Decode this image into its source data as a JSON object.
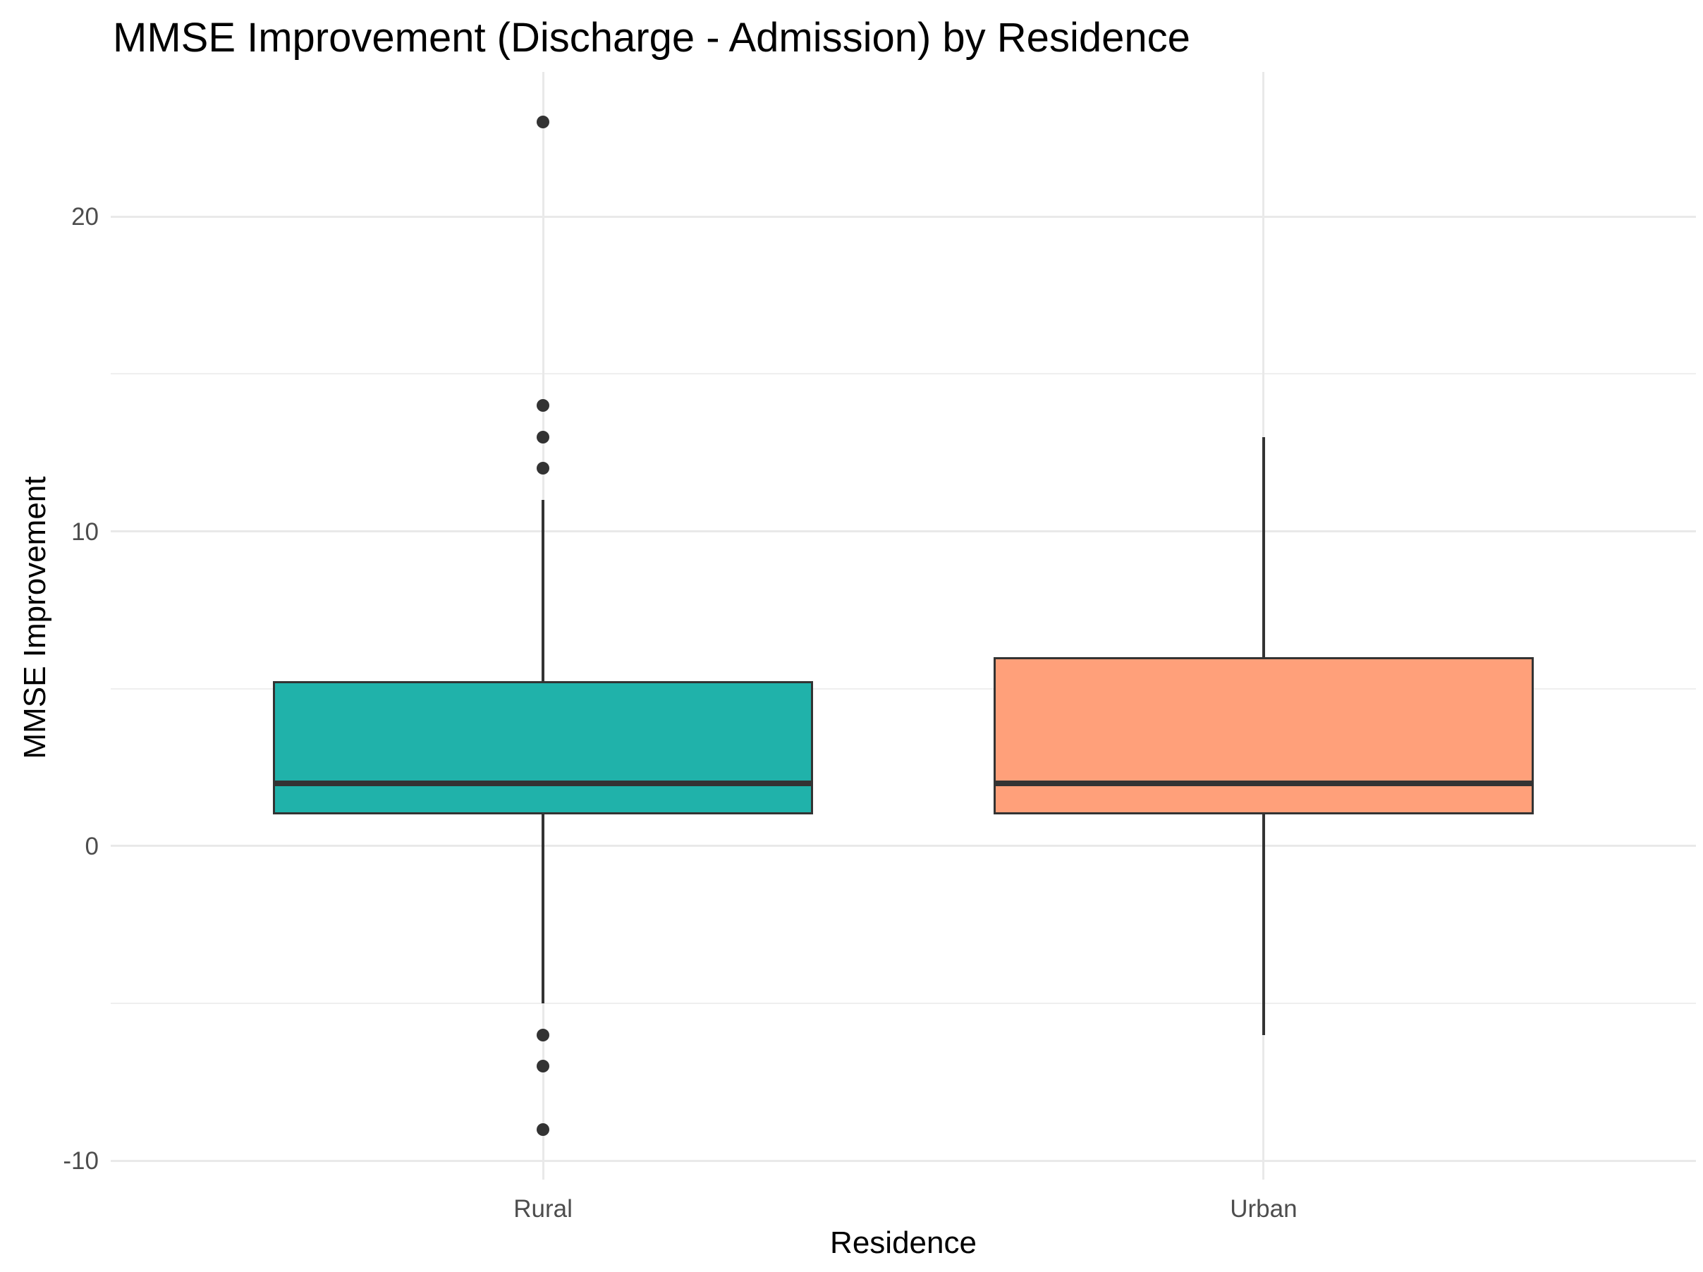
{
  "chart_data": {
    "type": "boxplot",
    "title": "MMSE Improvement (Discharge - Admission) by Residence",
    "xlabel": "Residence",
    "ylabel": "MMSE Improvement",
    "categories": [
      "Rural",
      "Urban"
    ],
    "series": [
      {
        "name": "Rural",
        "fill": "#20B2AA",
        "whisker_low": -5,
        "q1": 1,
        "median": 2,
        "q3": 5.25,
        "whisker_high": 11,
        "outliers": [
          23,
          14,
          13,
          12,
          -6,
          -7,
          -9
        ]
      },
      {
        "name": "Urban",
        "fill": "#FFA07A",
        "whisker_low": -6,
        "q1": 1,
        "median": 2,
        "q3": 6,
        "whisker_high": 13,
        "outliers": []
      }
    ],
    "y_major_ticks": [
      -10,
      0,
      10,
      20
    ],
    "y_minor_ticks": [
      -5,
      5,
      15
    ],
    "ylim": [
      -10.6,
      24.6
    ],
    "grid": true,
    "legend": false,
    "colors": {
      "box_border": "#333333",
      "median": "#333333",
      "whisker": "#333333",
      "outlier": "#333333",
      "grid_major": "#e9e9e9",
      "grid_minor": "#efefef",
      "tick_label": "#4d4d4d",
      "axis_title": "#000000",
      "title": "#000000",
      "background": "#ffffff"
    }
  }
}
